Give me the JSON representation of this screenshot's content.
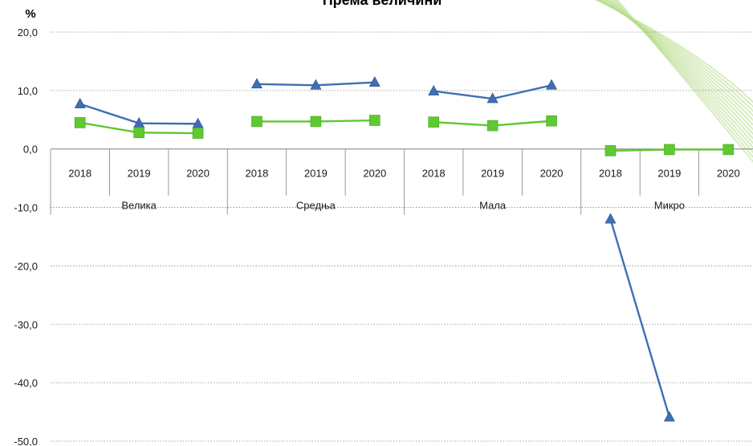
{
  "chart_data": {
    "type": "line",
    "title": "Према величини",
    "ylabel": "%",
    "ylim": [
      -50,
      20
    ],
    "yticks": [
      "-50,0",
      "-40,0",
      "-30,0",
      "-20,0",
      "-10,0",
      "0,0",
      "10,0",
      "20,0"
    ],
    "groups": [
      {
        "label": "Велика",
        "years": [
          "2018",
          "2019",
          "2020"
        ]
      },
      {
        "label": "Средња",
        "years": [
          "2018",
          "2019",
          "2020"
        ]
      },
      {
        "label": "Мала",
        "years": [
          "2018",
          "2019",
          "2020"
        ]
      },
      {
        "label": "Микро",
        "years": [
          "2018",
          "2019",
          "2020"
        ]
      }
    ],
    "series": [
      {
        "marker": "triangle",
        "color": "#3f6fb3",
        "values": [
          7.7,
          4.4,
          4.3,
          11.1,
          10.9,
          11.4,
          9.9,
          8.6,
          10.9,
          -12.0,
          -45.9,
          null
        ]
      },
      {
        "marker": "square",
        "color": "#5fc832",
        "values": [
          4.5,
          2.8,
          2.7,
          4.7,
          4.7,
          4.9,
          4.6,
          4.0,
          4.8,
          -0.3,
          -0.1,
          -0.1
        ]
      }
    ],
    "grid": true,
    "legend": "none"
  }
}
